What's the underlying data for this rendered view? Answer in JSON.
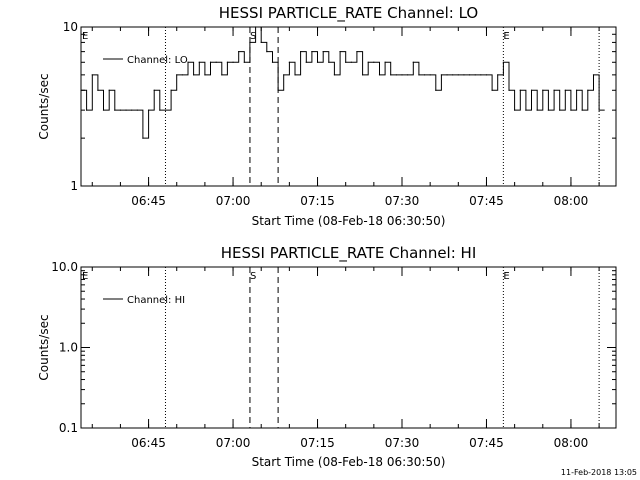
{
  "chart_data": [
    {
      "type": "line",
      "title": "HESSI PARTICLE_RATE Channel: LO",
      "xlabel": "Start Time (08-Feb-18 06:30:50)",
      "ylabel": "Counts/sec",
      "yscale": "log",
      "ylim": [
        1,
        10
      ],
      "xlim": [
        "06:33",
        "08:08"
      ],
      "ytick_labels": [
        "1",
        "10"
      ],
      "xtick_labels": [
        "06:45",
        "07:00",
        "07:15",
        "07:30",
        "07:45",
        "08:00"
      ],
      "legend": {
        "label": "Channel: LO",
        "placement": "top-left"
      },
      "grid": false,
      "markers": [
        {
          "label": "E",
          "time": "06:33",
          "style": "none"
        },
        {
          "label": "",
          "time": "06:48",
          "style": "dotted"
        },
        {
          "label": "S",
          "time": "07:03",
          "style": "dashed"
        },
        {
          "label": "",
          "time": "07:08",
          "style": "dashed"
        },
        {
          "label": "E",
          "time": "07:48",
          "style": "dotted"
        },
        {
          "label": "",
          "time": "08:05",
          "style": "dotted"
        }
      ],
      "series": [
        {
          "x": [
            "06:33",
            "06:34",
            "06:35",
            "06:36",
            "06:37",
            "06:38",
            "06:39",
            "06:40",
            "06:41",
            "06:42",
            "06:43",
            "06:44",
            "06:45",
            "06:46",
            "06:47",
            "06:48",
            "06:49",
            "06:50",
            "06:51",
            "06:52",
            "06:53",
            "06:54",
            "06:55",
            "06:56",
            "06:57",
            "06:58",
            "06:59",
            "07:00",
            "07:01",
            "07:02",
            "07:03",
            "07:04",
            "07:05",
            "07:06",
            "07:07",
            "07:08",
            "07:09",
            "07:10",
            "07:11",
            "07:12",
            "07:13",
            "07:14",
            "07:15",
            "07:16",
            "07:17",
            "07:18",
            "07:19",
            "07:20",
            "07:21",
            "07:22",
            "07:23",
            "07:24",
            "07:25",
            "07:26",
            "07:27",
            "07:28",
            "07:29",
            "07:30",
            "07:31",
            "07:32",
            "07:33",
            "07:34",
            "07:35",
            "07:36",
            "07:37",
            "07:38",
            "07:39",
            "07:40",
            "07:41",
            "07:42",
            "07:43",
            "07:44",
            "07:45",
            "07:46",
            "07:47",
            "07:48",
            "07:49",
            "07:50",
            "07:51",
            "07:52",
            "07:53",
            "07:54",
            "07:55",
            "07:56",
            "07:57",
            "07:58",
            "07:59",
            "08:00",
            "08:01",
            "08:02",
            "08:03",
            "08:04",
            "08:05"
          ],
          "values": [
            4,
            3,
            5,
            4,
            3,
            4,
            3,
            3,
            3,
            3,
            3,
            2,
            3,
            4,
            3,
            3,
            4,
            5,
            5,
            6,
            5,
            6,
            5,
            6,
            6,
            5,
            6,
            6,
            7,
            6,
            8,
            10,
            8,
            7,
            6,
            4,
            5,
            6,
            5,
            7,
            6,
            7,
            6,
            7,
            6,
            5,
            7,
            6,
            6,
            7,
            5,
            6,
            6,
            5,
            6,
            5,
            5,
            5,
            5,
            6,
            5,
            5,
            5,
            4,
            5,
            5,
            5,
            5,
            5,
            5,
            5,
            5,
            5,
            4,
            5,
            6,
            4,
            3,
            4,
            3,
            4,
            3,
            4,
            3,
            4,
            3,
            4,
            3,
            4,
            3,
            4,
            5,
            3
          ]
        }
      ]
    },
    {
      "type": "line",
      "title": "HESSI PARTICLE_RATE Channel: HI",
      "xlabel": "Start Time (08-Feb-18 06:30:50)",
      "ylabel": "Counts/sec",
      "yscale": "log",
      "ylim": [
        0.1,
        10
      ],
      "xlim": [
        "06:33",
        "08:08"
      ],
      "ytick_labels": [
        "0.1",
        "1.0",
        "10.0"
      ],
      "xtick_labels": [
        "06:45",
        "07:00",
        "07:15",
        "07:30",
        "07:45",
        "08:00"
      ],
      "legend": {
        "label": "Channel: HI",
        "placement": "top-left"
      },
      "grid": false,
      "markers": [
        {
          "label": "E",
          "time": "06:33",
          "style": "none"
        },
        {
          "label": "",
          "time": "06:48",
          "style": "dotted"
        },
        {
          "label": "S",
          "time": "07:03",
          "style": "dashed"
        },
        {
          "label": "",
          "time": "07:08",
          "style": "dashed"
        },
        {
          "label": "E",
          "time": "07:48",
          "style": "dotted"
        },
        {
          "label": "",
          "time": "08:05",
          "style": "dotted"
        }
      ],
      "series": []
    }
  ],
  "footer_timestamp": "11-Feb-2018 13:05"
}
